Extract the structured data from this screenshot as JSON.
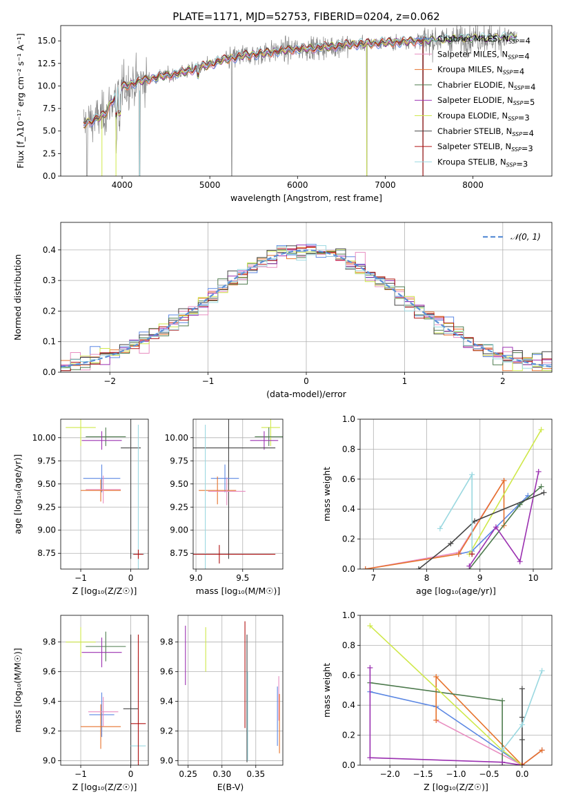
{
  "figure": {
    "title": "PLATE=1171, MJD=52753, FIBERID=0204, z=0.062"
  },
  "colors": {
    "chabrier_miles": "#5b87e3",
    "salpeter_miles": "#e88dc0",
    "kroupa_miles": "#e6722b",
    "chabrier_elodie": "#4d7a4d",
    "salpeter_elodie": "#9a2fb0",
    "kroupa_elodie": "#cfe84a",
    "chabrier_stelib": "#444444",
    "salpeter_stelib": "#b01010",
    "kroupa_stelib": "#9ad8e0",
    "data": "#808080",
    "normal": "#5b8fd6"
  },
  "chart_data": [
    {
      "id": "spectrum",
      "type": "line",
      "xlabel": "wavelength [Angstrom, rest frame]",
      "ylabel": "Flux [f_λ10⁻¹⁷ erg cm⁻² s⁻¹ A⁻¹]",
      "xlim": [
        3300,
        8900
      ],
      "ylim": [
        0,
        16.7
      ],
      "xticks": [
        "4000",
        "5000",
        "6000",
        "7000",
        "8000"
      ],
      "yticks": [
        "0.0",
        "2.5",
        "5.0",
        "7.5",
        "10.0",
        "12.5",
        "15.0"
      ],
      "legend_position": "right",
      "legend": [
        "Chabrier MILES, N_SSP=4",
        "Salpeter MILES, N_SSP=4",
        "Kroupa MILES, N_SSP=4",
        "Chabrier ELODIE, N_SSP=4",
        "Salpeter ELODIE, N_SSP=5",
        "Kroupa ELODIE, N_SSP=3",
        "Chabrier STELIB, N_SSP=4",
        "Salpeter STELIB, N_SSP=3",
        "Kroupa STELIB, N_SSP=3"
      ],
      "continuum": {
        "x": [
          3560,
          3700,
          3800,
          3900,
          4000,
          4100,
          4200,
          4400,
          4600,
          4800,
          5000,
          5200,
          5400,
          5600,
          5800,
          6000,
          6200,
          6400,
          6600,
          6800,
          7000,
          7200,
          7400,
          7600,
          7800,
          8000,
          8200,
          8400,
          8600,
          8800
        ],
        "y": [
          5.8,
          6.3,
          6.8,
          8.6,
          9.9,
          10.2,
          10.5,
          11.0,
          11.3,
          11.8,
          12.4,
          13.0,
          13.4,
          13.6,
          13.9,
          14.1,
          14.2,
          14.4,
          14.6,
          14.7,
          14.8,
          14.9,
          15.0,
          15.1,
          15.2,
          15.3,
          15.3,
          15.4,
          15.4,
          15.5
        ]
      }
    },
    {
      "id": "residuals",
      "type": "histogram",
      "xlabel": "(data-model)/error",
      "ylabel": "Normed distribution",
      "xlim": [
        -2.5,
        2.5
      ],
      "ylim": [
        0,
        0.49
      ],
      "xticks": [
        "-2",
        "-1",
        "0",
        "1",
        "2"
      ],
      "yticks": [
        "0.0",
        "0.1",
        "0.2",
        "0.3",
        "0.4"
      ],
      "legend": [
        "𝒩(0, 1)"
      ],
      "legend_position": "top-right",
      "bin_width": 0.1,
      "bin_start": -2.5
    },
    {
      "id": "age_vs_Z",
      "type": "errorbar",
      "xlabel": "Z [log₁₀(Z/Z☉)]",
      "ylabel": "age  [log₁₀(age/yr)]",
      "xlim": [
        -1.4,
        0.35
      ],
      "ylim": [
        8.58,
        10.2
      ],
      "xticks": [
        "-1",
        "0"
      ],
      "yticks": [
        "8.75",
        "9.00",
        "9.25",
        "9.50",
        "9.75",
        "10.00"
      ],
      "series": [
        {
          "color": "kroupa_elodie",
          "x": -1.0,
          "y": 10.11,
          "xerr": 0.3,
          "yerr": 0.2
        },
        {
          "color": "chabrier_elodie",
          "x": -0.5,
          "y": 10.01,
          "xerr": 0.4,
          "yerr": 0.1
        },
        {
          "color": "salpeter_elodie",
          "x": -0.58,
          "y": 9.97,
          "xerr": 0.4,
          "yerr": 0.1
        },
        {
          "color": "chabrier_stelib",
          "x": 0.0,
          "y": 9.89,
          "xerr": 0.2,
          "yerr": 1.2
        },
        {
          "color": "chabrier_miles",
          "x": -0.58,
          "y": 9.56,
          "xerr": 0.37,
          "yerr": 0.15
        },
        {
          "color": "kroupa_miles",
          "x": -0.6,
          "y": 9.43,
          "xerr": 0.4,
          "yerr": 0.12
        },
        {
          "color": "salpeter_miles",
          "x": -0.55,
          "y": 9.44,
          "xerr": 0.35,
          "yerr": 0.15
        },
        {
          "color": "kroupa_stelib",
          "x": 0.15,
          "y": 8.74,
          "xerr": 0.12,
          "yerr": 1.4
        },
        {
          "color": "salpeter_stelib",
          "x": 0.15,
          "y": 8.74,
          "xerr": 0.1,
          "yerr": 0.05
        }
      ]
    },
    {
      "id": "age_vs_mass",
      "type": "errorbar",
      "xlabel": "mass [log₁₀(M/M☉)]",
      "ylabel": "",
      "xlim": [
        8.97,
        9.93
      ],
      "ylim": [
        8.58,
        10.2
      ],
      "xticks": [
        "9.0",
        "9.5"
      ],
      "yticks": [
        "8.75",
        "9.00",
        "9.25",
        "9.50",
        "9.75",
        "10.00"
      ],
      "series": [
        {
          "color": "kroupa_elodie",
          "x": 9.8,
          "y": 10.11,
          "xerr": 0.1,
          "yerr": 0.2
        },
        {
          "color": "chabrier_elodie",
          "x": 9.78,
          "y": 10.01,
          "xerr": 0.15,
          "yerr": 0.1
        },
        {
          "color": "salpeter_elodie",
          "x": 9.73,
          "y": 9.97,
          "xerr": 0.15,
          "yerr": 0.1
        },
        {
          "color": "chabrier_stelib",
          "x": 9.35,
          "y": 9.89,
          "xerr": 0.5,
          "yerr": 1.2
        },
        {
          "color": "chabrier_miles",
          "x": 9.31,
          "y": 9.56,
          "xerr": 0.15,
          "yerr": 0.15
        },
        {
          "color": "kroupa_miles",
          "x": 9.23,
          "y": 9.43,
          "xerr": 0.2,
          "yerr": 0.15
        },
        {
          "color": "salpeter_miles",
          "x": 9.33,
          "y": 9.42,
          "xerr": 0.2,
          "yerr": 0.15
        },
        {
          "color": "kroupa_stelib",
          "x": 9.1,
          "y": 8.74,
          "xerr": 0.7,
          "yerr": 1.4
        },
        {
          "color": "salpeter_stelib",
          "x": 9.25,
          "y": 8.74,
          "xerr": 0.6,
          "yerr": 0.1
        }
      ]
    },
    {
      "id": "weight_vs_age",
      "type": "line",
      "xlabel": "age  [log₁₀(age/yr)]",
      "ylabel": "mass weight",
      "xlim": [
        6.75,
        10.35
      ],
      "ylim": [
        0,
        1.0
      ],
      "xticks": [
        "7",
        "8",
        "9",
        "10"
      ],
      "yticks": [
        "0.0",
        "0.2",
        "0.4",
        "0.6",
        "0.8",
        "1.0"
      ],
      "series": [
        {
          "color": "chabrier_miles",
          "x": [
            8.6,
            8.85,
            9.9
          ],
          "y": [
            0.1,
            0.12,
            0.49
          ]
        },
        {
          "color": "salpeter_miles",
          "x": [
            6.85,
            8.6,
            9.45
          ],
          "y": [
            0.0,
            0.11,
            0.59
          ]
        },
        {
          "color": "kroupa_miles",
          "x": [
            6.85,
            8.6,
            9.45,
            9.45
          ],
          "y": [
            0.0,
            0.1,
            0.59,
            0.29
          ]
        },
        {
          "color": "chabrier_elodie",
          "x": [
            8.8,
            9.75,
            10.15
          ],
          "y": [
            0.0,
            0.43,
            0.55
          ]
        },
        {
          "color": "salpeter_elodie",
          "x": [
            8.8,
            9.3,
            9.75,
            10.1
          ],
          "y": [
            0.02,
            0.28,
            0.05,
            0.65
          ]
        },
        {
          "color": "kroupa_elodie",
          "x": [
            8.8,
            10.15
          ],
          "y": [
            0.1,
            0.93
          ]
        },
        {
          "color": "chabrier_stelib",
          "x": [
            7.85,
            8.45,
            8.9,
            10.2
          ],
          "y": [
            0.0,
            0.17,
            0.32,
            0.51
          ]
        },
        {
          "color": "kroupa_stelib",
          "x": [
            8.25,
            8.85,
            8.85
          ],
          "y": [
            0.27,
            0.63,
            0.1
          ]
        },
        {
          "color": "salpeter_stelib",
          "x": [
            8.85
          ],
          "y": [
            0.1
          ]
        }
      ]
    },
    {
      "id": "mass_vs_Z",
      "type": "errorbar",
      "xlabel": "Z [log₁₀(Z/Z☉)]",
      "ylabel": "mass [log₁₀(M/M☉)]",
      "xlim": [
        -1.4,
        0.35
      ],
      "ylim": [
        8.97,
        9.98
      ],
      "xticks": [
        "-1",
        "0"
      ],
      "yticks": [
        "9.0",
        "9.2",
        "9.4",
        "9.6",
        "9.8"
      ],
      "series": [
        {
          "color": "kroupa_elodie",
          "x": -1.0,
          "y": 9.8,
          "xerr": 0.3,
          "yerr": 0.1
        },
        {
          "color": "chabrier_elodie",
          "x": -0.5,
          "y": 9.77,
          "xerr": 0.4,
          "yerr": 0.1
        },
        {
          "color": "salpeter_elodie",
          "x": -0.58,
          "y": 9.73,
          "xerr": 0.4,
          "yerr": 0.1
        },
        {
          "color": "chabrier_stelib",
          "x": 0.0,
          "y": 9.35,
          "xerr": 0.15,
          "yerr": 0.5
        },
        {
          "color": "chabrier_miles",
          "x": -0.58,
          "y": 9.31,
          "xerr": 0.25,
          "yerr": 0.15
        },
        {
          "color": "kroupa_miles",
          "x": -0.6,
          "y": 9.23,
          "xerr": 0.4,
          "yerr": 0.15
        },
        {
          "color": "salpeter_miles",
          "x": -0.55,
          "y": 9.33,
          "xerr": 0.3,
          "yerr": 0.1
        },
        {
          "color": "kroupa_stelib",
          "x": 0.15,
          "y": 9.1,
          "xerr": 0.15,
          "yerr": 0.6
        },
        {
          "color": "salpeter_stelib",
          "x": 0.15,
          "y": 9.25,
          "xerr": 0.15,
          "yerr": 0.6
        }
      ]
    },
    {
      "id": "mass_vs_ebv",
      "type": "errorbar",
      "xlabel": "E(B-V)",
      "ylabel": "",
      "xlim": [
        0.235,
        0.39
      ],
      "ylim": [
        8.97,
        9.98
      ],
      "xticks": [
        "0.25",
        "0.30",
        "0.35"
      ],
      "yticks": [
        "9.0",
        "9.2",
        "9.4",
        "9.6",
        "9.8"
      ],
      "series": [
        {
          "color": "salpeter_elodie",
          "x": 0.246,
          "y": 9.71,
          "yerr": 0.2
        },
        {
          "color": "kroupa_elodie",
          "x": 0.276,
          "y": 9.75,
          "yerr": 0.15
        },
        {
          "color": "salpeter_stelib",
          "x": 0.334,
          "y": 9.58,
          "yerr": 0.36
        },
        {
          "color": "chabrier_stelib",
          "x": 0.337,
          "y": 9.42,
          "yerr": 0.43
        },
        {
          "color": "kroupa_stelib",
          "x": 0.338,
          "y": 9.3,
          "yerr": 0.3
        },
        {
          "color": "salpeter_miles",
          "x": 0.384,
          "y": 9.42,
          "yerr": 0.15
        },
        {
          "color": "kroupa_miles",
          "x": 0.385,
          "y": 9.25,
          "yerr": 0.2
        },
        {
          "color": "chabrier_miles",
          "x": 0.382,
          "y": 9.3,
          "yerr": 0.2
        }
      ]
    },
    {
      "id": "weight_vs_Z",
      "type": "line",
      "xlabel": "Z [log₁₀(Z/Z☉)]",
      "ylabel": "mass weight",
      "xlim": [
        -2.45,
        0.45
      ],
      "ylim": [
        0,
        1.0
      ],
      "xticks": [
        "-2.0",
        "-1.5",
        "-1.0",
        "-0.5",
        "0.0"
      ],
      "yticks": [
        "0.0",
        "0.2",
        "0.4",
        "0.6",
        "0.8",
        "1.0"
      ],
      "series": [
        {
          "color": "chabrier_miles",
          "x": [
            -2.3,
            -1.3,
            0.0,
            0.3
          ],
          "y": [
            0.49,
            0.39,
            0.0,
            0.1
          ]
        },
        {
          "color": "salpeter_miles",
          "x": [
            -1.3,
            0.0,
            0.3
          ],
          "y": [
            0.3,
            0.0,
            0.1
          ]
        },
        {
          "color": "kroupa_miles",
          "x": [
            -1.3,
            -1.3,
            0.0,
            0.3
          ],
          "y": [
            0.3,
            0.59,
            0.0,
            0.1
          ]
        },
        {
          "color": "chabrier_elodie",
          "x": [
            -2.3,
            -0.3,
            -0.3
          ],
          "y": [
            0.55,
            0.43,
            0.0
          ]
        },
        {
          "color": "salpeter_elodie",
          "x": [
            -2.3,
            -2.3,
            -0.3,
            0.0
          ],
          "y": [
            0.65,
            0.05,
            0.02,
            0.0
          ]
        },
        {
          "color": "kroupa_elodie",
          "x": [
            -2.3,
            -0.3,
            0.0
          ],
          "y": [
            0.93,
            0.1,
            0.0
          ]
        },
        {
          "color": "chabrier_stelib",
          "x": [
            0.0,
            0.0,
            0.0,
            0.0
          ],
          "y": [
            0.51,
            0.32,
            0.17,
            0.0
          ]
        },
        {
          "color": "kroupa_stelib",
          "x": [
            -0.3,
            0.0,
            0.3
          ],
          "y": [
            0.1,
            0.27,
            0.63
          ]
        },
        {
          "color": "salpeter_stelib",
          "x": [
            0.0
          ],
          "y": [
            0.0
          ]
        }
      ]
    }
  ]
}
